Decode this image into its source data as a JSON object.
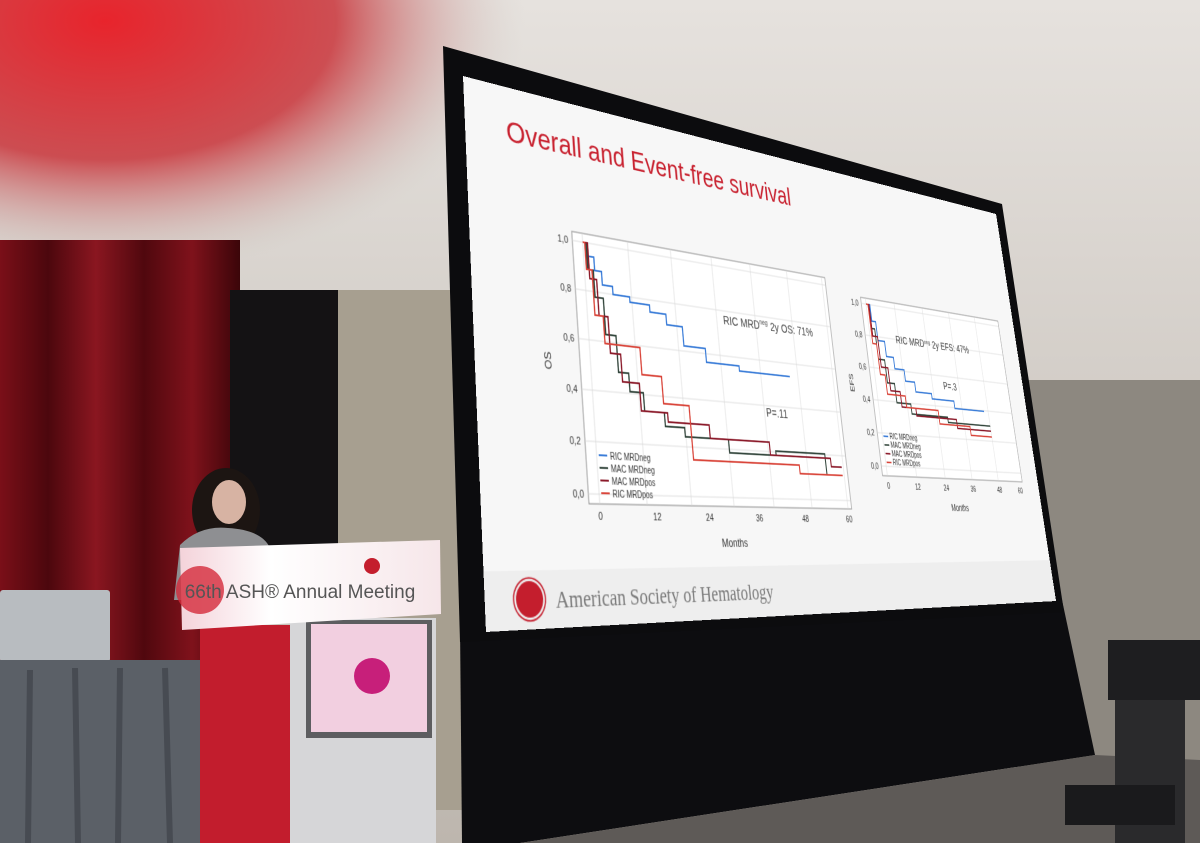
{
  "slide": {
    "title": "Overall and Event-free survival",
    "footer": "American Society of Hematology",
    "os_chart": {
      "y_label": "OS",
      "x_label": "Months",
      "y_ticks": [
        "1,0",
        "0,8",
        "0,6",
        "0,4",
        "0,2",
        "0,0"
      ],
      "x_ticks": [
        "0",
        "12",
        "24",
        "36",
        "48",
        "60"
      ],
      "legend": [
        "RIC MRDneg",
        "MAC MRDneg",
        "MAC MRDpos",
        "RIC MRDpos"
      ],
      "annotation": {
        "prefix": "RIC MRD",
        "superscript": "neg",
        "suffix": " 2y OS: 71%"
      },
      "p_value": "P=.11"
    },
    "efs_chart": {
      "y_label": "EFS",
      "x_label": "Months",
      "y_ticks": [
        "1,0",
        "0,8",
        "0,6",
        "0,4",
        "0,2",
        "0,0"
      ],
      "x_ticks": [
        "0",
        "12",
        "24",
        "36",
        "48",
        "60"
      ],
      "legend": [
        "RIC MRDneg",
        "MAC MRDneg",
        "MAC MRDpos",
        "RIC MRDpos"
      ],
      "annotation": {
        "prefix": "RIC MRD",
        "superscript": "neg",
        "suffix": " 2y EFS: 47%"
      },
      "p_value": "P=.3"
    }
  },
  "podium": {
    "banner": "66th ASH® Annual Meeting"
  }
}
